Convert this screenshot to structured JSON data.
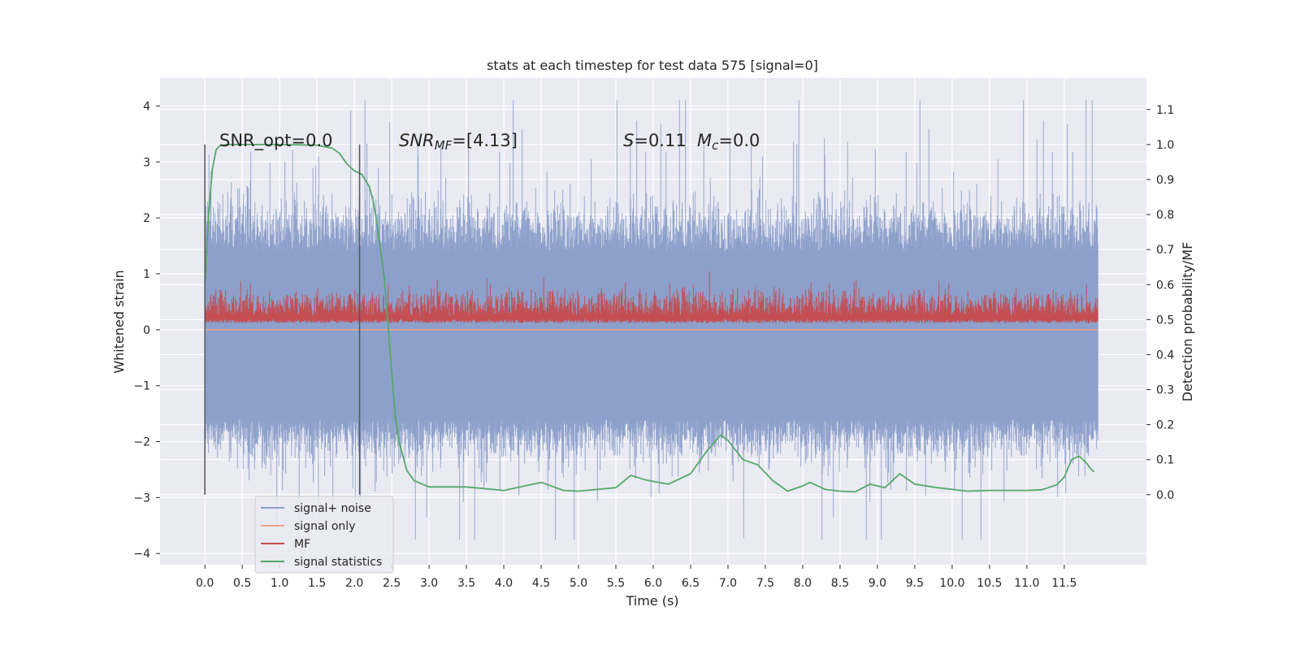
{
  "chart_data": {
    "type": "line",
    "title": "stats at each timestep for test data 575 [signal=0]",
    "xlabel": "Time (s)",
    "ylabel_left": "Whitened strain",
    "ylabel_right": "Detection probability/MF",
    "xlim": [
      -0.6,
      12.6
    ],
    "ylim_left": [
      -4.2,
      4.5
    ],
    "ylim_right": [
      -0.2,
      1.19
    ],
    "x_ticks": [
      0.0,
      0.5,
      1.0,
      1.5,
      2.0,
      2.5,
      3.0,
      3.5,
      4.0,
      4.5,
      5.0,
      5.5,
      6.0,
      6.5,
      7.0,
      7.5,
      8.0,
      8.5,
      9.0,
      9.5,
      10.0,
      10.5,
      11.0,
      11.5
    ],
    "x_tick_labels": [
      "0.0",
      "0.5",
      "1.0",
      "1.5",
      "2.0",
      "2.5",
      "3.0",
      "3.5",
      "4.0",
      "4.5",
      "5.0",
      "5.5",
      "6.0",
      "6.5",
      "7.0",
      "7.5",
      "8.0",
      "8.5",
      "9.0",
      "9.5",
      "10.0",
      "10.5",
      "11.0",
      "11.5"
    ],
    "y_left_ticks": [
      -4,
      -3,
      -2,
      -1,
      0,
      1,
      2,
      3,
      4
    ],
    "y_left_tick_labels": [
      "−4",
      "−3",
      "−2",
      "−1",
      "0",
      "1",
      "2",
      "3",
      "4"
    ],
    "y_right_ticks": [
      0.0,
      0.1,
      0.2,
      0.3,
      0.4,
      0.5,
      0.6,
      0.7,
      0.8,
      0.9,
      1.0,
      1.1
    ],
    "y_right_tick_labels": [
      "0.0",
      "0.1",
      "0.2",
      "0.3",
      "0.4",
      "0.5",
      "0.6",
      "0.7",
      "0.8",
      "0.9",
      "1.0",
      "1.1"
    ],
    "grid": true,
    "legend_position": "lower-left",
    "annotations": {
      "snr_opt": "SNR_opt=0.0",
      "snr_mf_prefix": "SNR",
      "snr_mf_sub": "MF",
      "snr_mf_value": "=[4.13]",
      "s_sym": "S",
      "s_value": "=0.11",
      "mc_sym": "M",
      "mc_sub": "c",
      "mc_value": "=0.0"
    },
    "vertical_markers": [
      0.0,
      2.07
    ],
    "series": [
      {
        "name": "signal+ noise",
        "axis": "left",
        "color": "#8da0cb",
        "kind": "noise",
        "x_range": [
          0.0,
          11.95
        ],
        "typical_range": [
          -1.6,
          1.4
        ],
        "extreme_range": [
          -3.75,
          4.1
        ]
      },
      {
        "name": "signal only",
        "axis": "left",
        "color": "#e8a58a",
        "x": [
          0.0,
          11.95
        ],
        "y": [
          0.0,
          0.0
        ]
      },
      {
        "name": "MF",
        "axis": "right",
        "color": "#c44e52",
        "kind": "noise",
        "x_range": [
          0.0,
          11.95
        ],
        "typical_range": [
          0.49,
          0.6
        ],
        "extreme_range": [
          0.49,
          0.65
        ]
      },
      {
        "name": "signal statistics",
        "axis": "right",
        "color": "#55a868",
        "x": [
          0.0,
          0.05,
          0.1,
          0.15,
          0.2,
          0.3,
          0.5,
          1.0,
          1.5,
          1.7,
          1.8,
          1.9,
          2.0,
          2.1,
          2.2,
          2.25,
          2.3,
          2.4,
          2.5,
          2.55,
          2.6,
          2.7,
          2.8,
          3.0,
          3.5,
          4.0,
          4.5,
          4.8,
          5.0,
          5.5,
          5.7,
          5.9,
          6.2,
          6.5,
          6.7,
          6.9,
          7.0,
          7.2,
          7.4,
          7.6,
          7.8,
          8.0,
          8.1,
          8.3,
          8.5,
          8.7,
          8.9,
          9.1,
          9.3,
          9.5,
          9.8,
          10.2,
          10.5,
          11.0,
          11.2,
          11.4,
          11.5,
          11.6,
          11.7,
          11.8,
          11.85,
          11.9
        ],
        "y": [
          0.6,
          0.8,
          0.93,
          0.985,
          0.997,
          1.0,
          1.0,
          1.0,
          0.998,
          0.99,
          0.975,
          0.945,
          0.925,
          0.915,
          0.88,
          0.84,
          0.78,
          0.62,
          0.35,
          0.22,
          0.15,
          0.07,
          0.04,
          0.022,
          0.022,
          0.012,
          0.035,
          0.012,
          0.01,
          0.02,
          0.055,
          0.042,
          0.03,
          0.06,
          0.12,
          0.17,
          0.155,
          0.1,
          0.085,
          0.04,
          0.01,
          0.025,
          0.035,
          0.015,
          0.01,
          0.008,
          0.03,
          0.02,
          0.06,
          0.03,
          0.02,
          0.01,
          0.012,
          0.012,
          0.014,
          0.028,
          0.05,
          0.1,
          0.11,
          0.09,
          0.075,
          0.065
        ]
      }
    ]
  }
}
